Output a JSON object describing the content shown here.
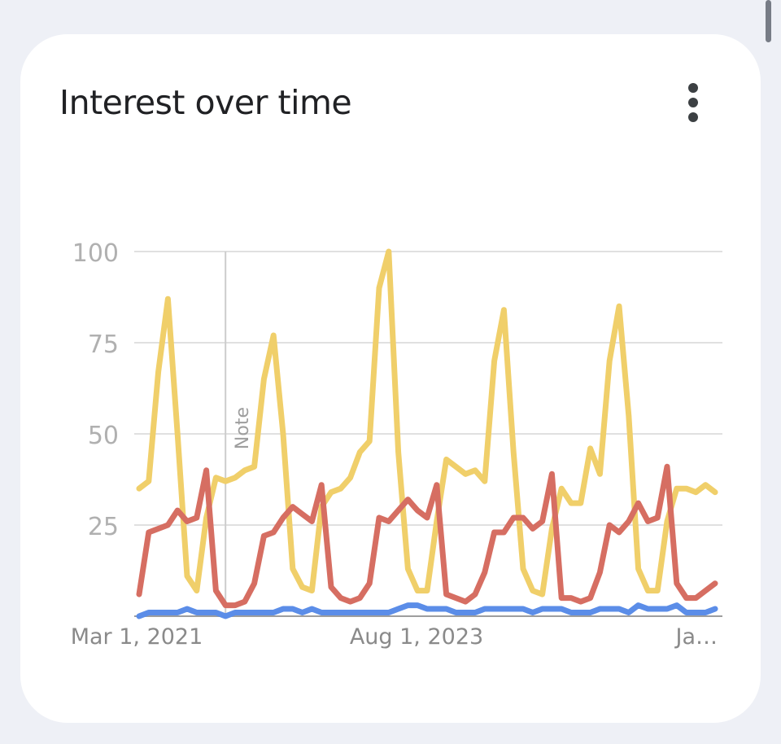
{
  "card": {
    "title": "Interest over time",
    "menu_icon": "more-vert-icon"
  },
  "chart_data": {
    "type": "line",
    "title": "Interest over time",
    "ylim": [
      0,
      100
    ],
    "y_ticks": [
      25,
      50,
      75,
      100
    ],
    "y_tick_labels": [
      "25",
      "50",
      "75",
      "100"
    ],
    "x_tick_labels": [
      "Mar 1, 2021",
      "Aug 1, 2023",
      "Ja…"
    ],
    "grid": true,
    "annotation": {
      "label": "Note",
      "x_index": 9
    },
    "colors": {
      "yellow": "#f0cf6a",
      "red": "#d66e62",
      "blue": "#5b8de8",
      "grid": "#e0e0e0",
      "axis": "#9e9e9e",
      "tick_text": "#b0b0b0",
      "xlabel_text": "#8a8a8a",
      "note_line": "#cccccc",
      "note_text": "#9e9e9e"
    },
    "series": [
      {
        "color_key": "yellow",
        "values": [
          35,
          37,
          67,
          87,
          50,
          11,
          7,
          27,
          38,
          37,
          38,
          40,
          41,
          65,
          77,
          50,
          13,
          8,
          7,
          30,
          34,
          35,
          38,
          45,
          48,
          90,
          100,
          45,
          13,
          7,
          7,
          26,
          43,
          41,
          39,
          40,
          37,
          70,
          84,
          45,
          13,
          7,
          6,
          24,
          35,
          31,
          31,
          46,
          39,
          70,
          85,
          55,
          13,
          7,
          7,
          26,
          35,
          35,
          34,
          36,
          34
        ]
      },
      {
        "color_key": "red",
        "values": [
          6,
          23,
          24,
          25,
          29,
          26,
          27,
          40,
          7,
          3,
          3,
          4,
          9,
          22,
          23,
          27,
          30,
          28,
          26,
          36,
          8,
          5,
          4,
          5,
          9,
          27,
          26,
          29,
          32,
          29,
          27,
          36,
          6,
          5,
          4,
          6,
          12,
          23,
          23,
          27,
          27,
          24,
          26,
          39,
          5,
          5,
          4,
          5,
          12,
          25,
          23,
          26,
          31,
          26,
          27,
          41,
          9,
          5,
          5,
          7,
          9
        ]
      },
      {
        "color_key": "blue",
        "values": [
          0,
          1,
          1,
          1,
          1,
          2,
          1,
          1,
          1,
          0,
          1,
          1,
          1,
          1,
          1,
          2,
          2,
          1,
          2,
          1,
          1,
          1,
          1,
          1,
          1,
          1,
          1,
          2,
          3,
          3,
          2,
          2,
          2,
          1,
          1,
          1,
          2,
          2,
          2,
          2,
          2,
          1,
          2,
          2,
          2,
          1,
          1,
          1,
          2,
          2,
          2,
          1,
          3,
          2,
          2,
          2,
          3,
          1,
          1,
          1,
          2
        ]
      }
    ]
  }
}
